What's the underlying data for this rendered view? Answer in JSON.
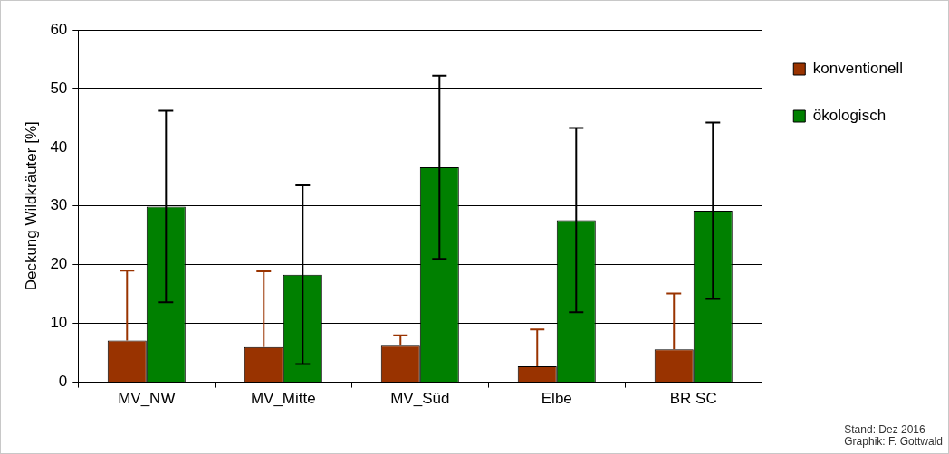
{
  "chart_data": {
    "type": "bar",
    "ylabel": "Deckung Wildkräuter [%]",
    "categories": [
      "MV_NW",
      "MV_Mitte",
      "MV_Süd",
      "Elbe",
      "BR SC"
    ],
    "series": [
      {
        "name": "konventionell",
        "color": "#993300",
        "values": [
          7.1,
          6.0,
          6.2,
          2.7,
          5.6
        ],
        "errors": [
          [
            7.1,
            19.0
          ],
          [
            6.0,
            18.9
          ],
          [
            6.2,
            8.0
          ],
          [
            2.7,
            9.0
          ],
          [
            5.6,
            15.1
          ]
        ]
      },
      {
        "name": "ökologisch",
        "color": "#008000",
        "values": [
          29.9,
          18.3,
          36.6,
          27.6,
          29.2
        ],
        "errors": [
          16.3,
          15.2,
          15.6,
          15.7,
          15.0
        ]
      }
    ],
    "ylim": [
      0,
      60
    ],
    "yticks": [
      0,
      10,
      20,
      30,
      40,
      50,
      60
    ],
    "grid": "y",
    "legend": "right",
    "annotations": [
      "Stand: Dez 2016",
      "Graphik: F. Gottwald"
    ]
  }
}
